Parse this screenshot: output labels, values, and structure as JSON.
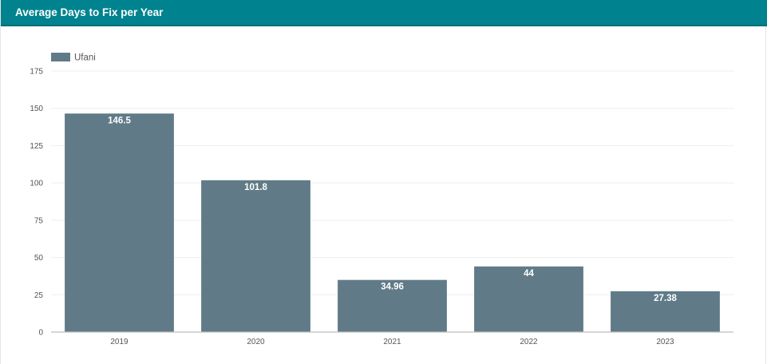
{
  "panel": {
    "title": "Average Days to Fix per Year"
  },
  "colors": {
    "header": "#00838f",
    "bar": "#607b87",
    "grid": "#eeeeee",
    "axis": "#bdbdbd"
  },
  "chart_data": {
    "type": "bar",
    "title": "Average Days to Fix per Year",
    "xlabel": "",
    "ylabel": "",
    "categories": [
      "2019",
      "2020",
      "2021",
      "2022",
      "2023"
    ],
    "series": [
      {
        "name": "Ufani",
        "values": [
          146.5,
          101.8,
          34.96,
          44,
          27.38
        ],
        "labels": [
          "146.5",
          "101.8",
          "34.96",
          "44",
          "27.38"
        ]
      }
    ],
    "ylim": [
      0,
      175
    ],
    "yticks": [
      0,
      25,
      50,
      75,
      100,
      125,
      150,
      175
    ],
    "grid": true,
    "legend_position": "top-left"
  }
}
